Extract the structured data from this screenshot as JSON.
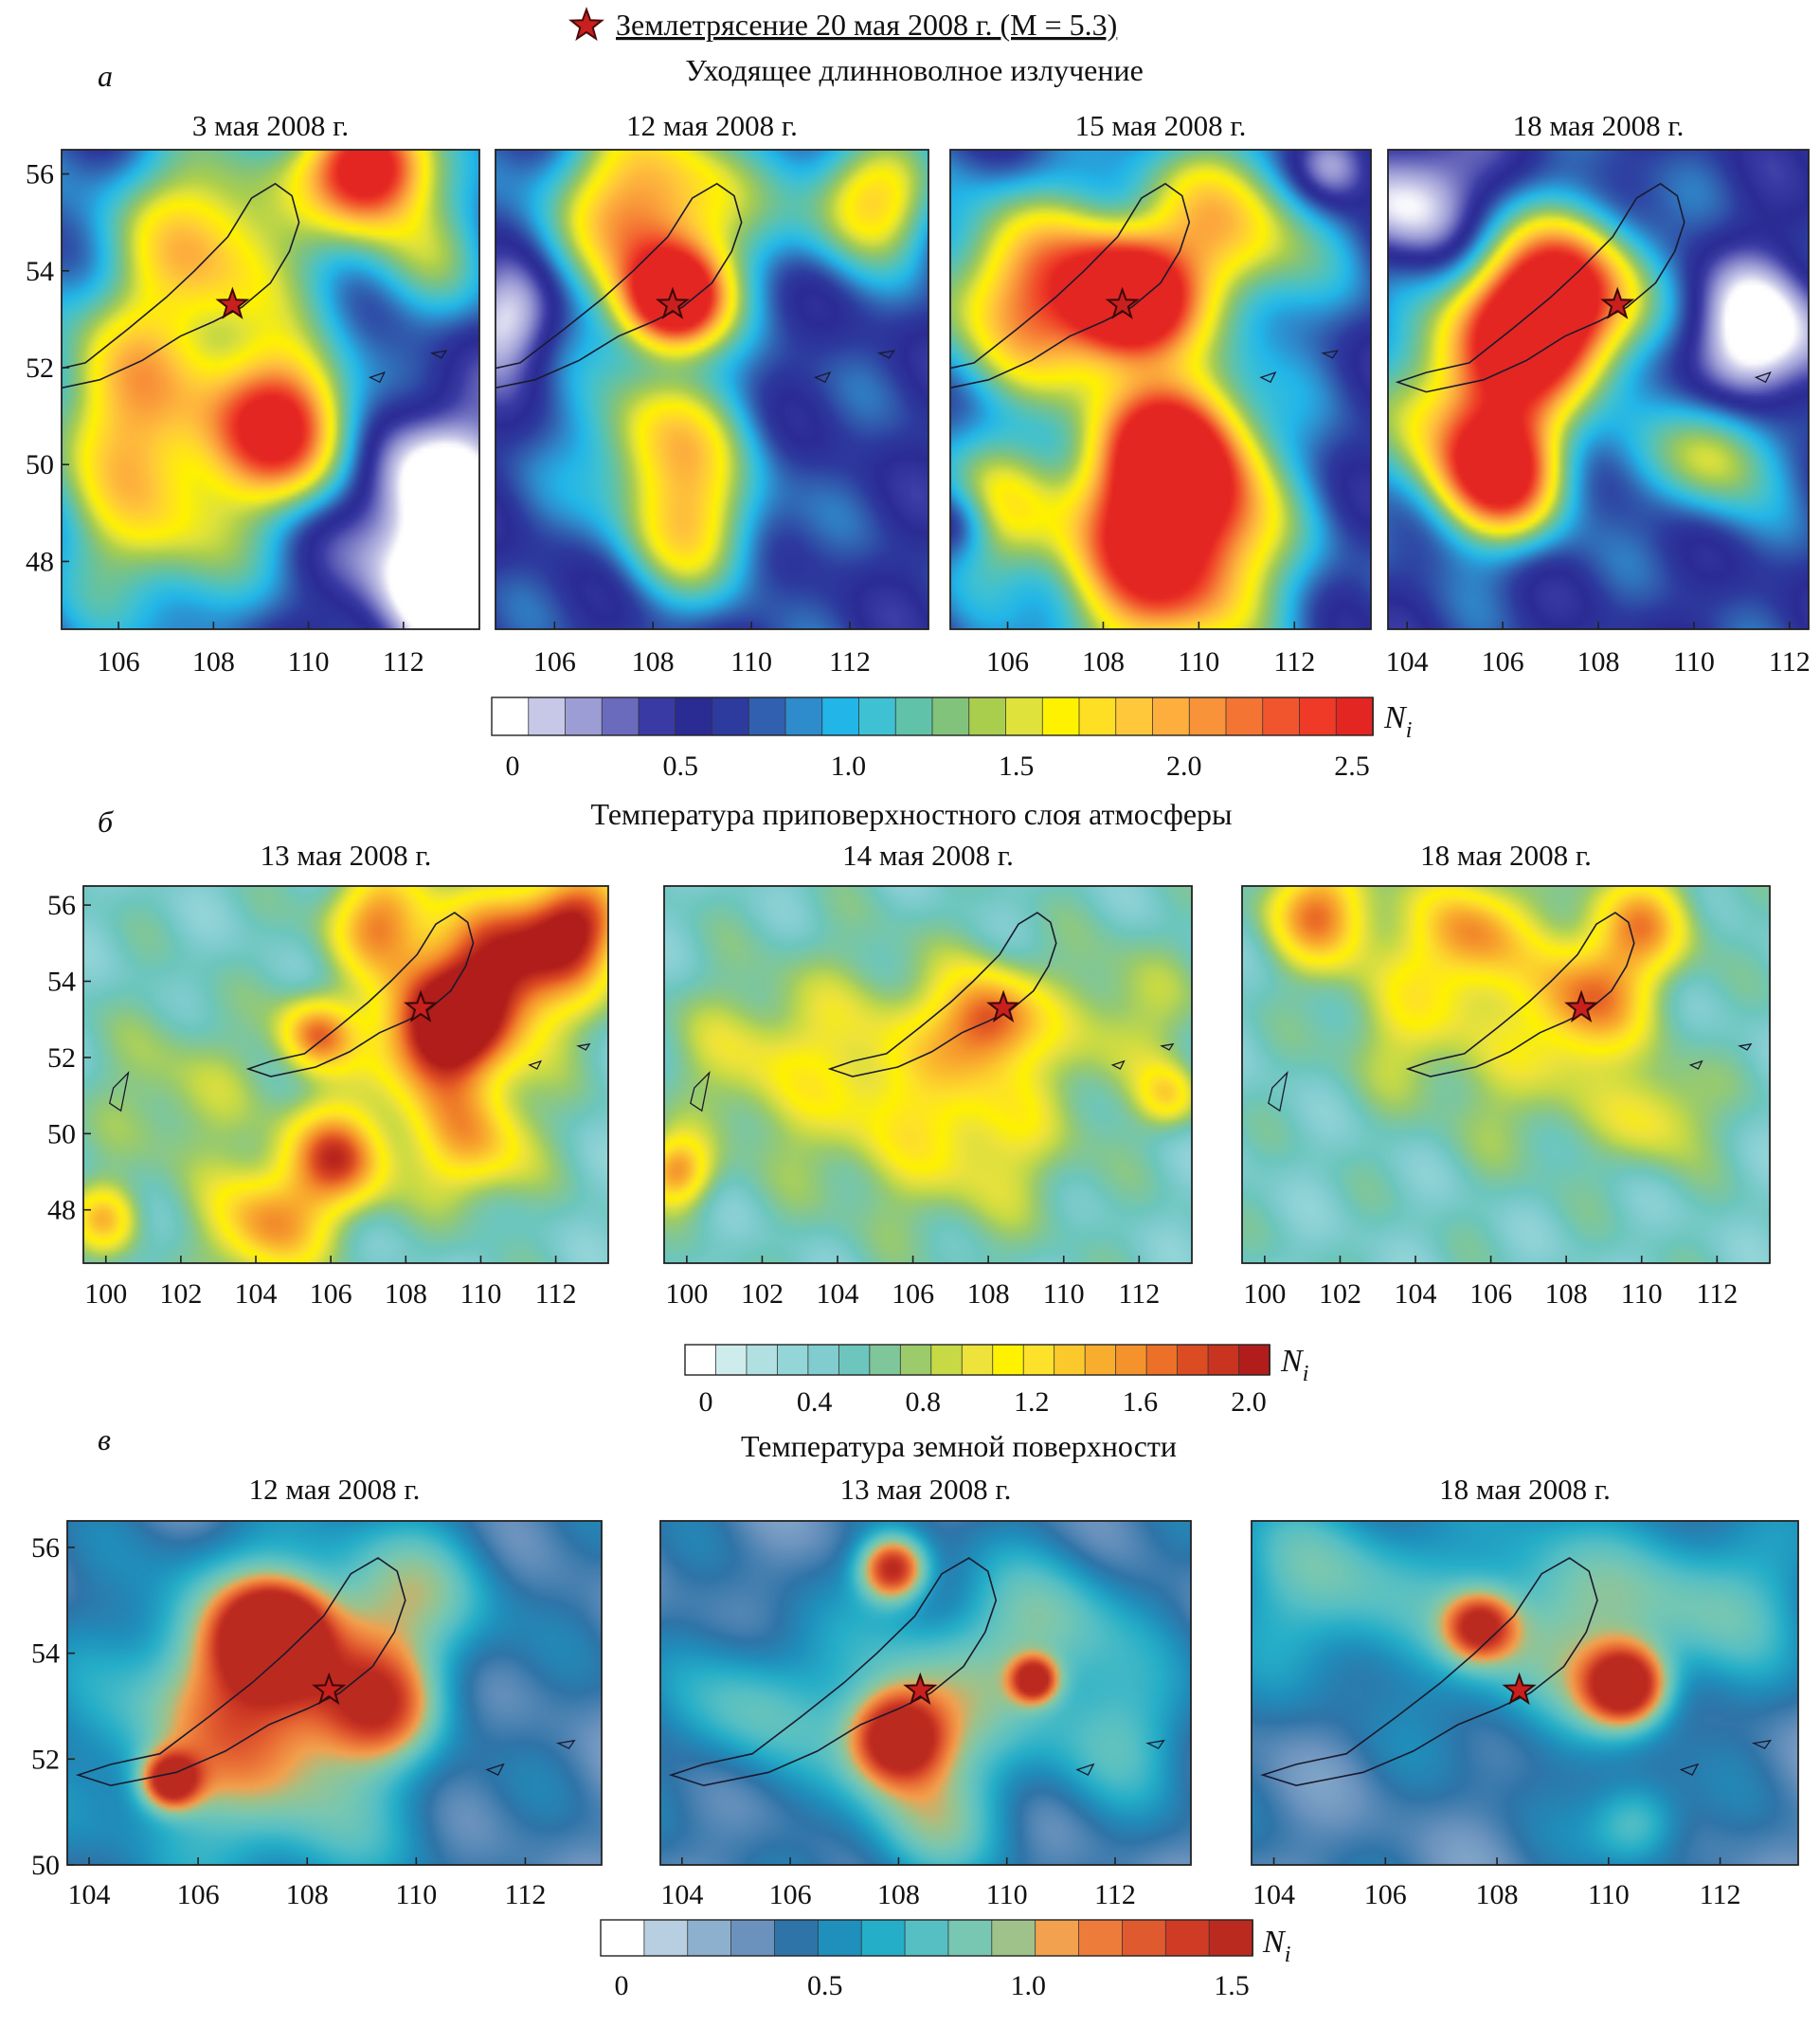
{
  "legend": {
    "marker": "red-star",
    "label": "Землетрясение 20 мая 2008 г. (M = 5.3)",
    "epicenter": {
      "lon": 108.4,
      "lat": 53.3
    },
    "star_color": "#c8201e"
  },
  "sections": [
    {
      "letter": "а",
      "title": "Уходящее длинноволное излучение",
      "panels": [
        {
          "title": "3 мая 2008 г.",
          "lon_range": [
            104.8,
            113.6
          ],
          "lat_range": [
            46.6,
            56.5
          ],
          "x_ticks": [
            106,
            108,
            110,
            112
          ],
          "y_ticks": [
            48,
            50,
            52,
            54,
            56
          ],
          "hotspots": [
            {
              "lon": 111.3,
              "lat": 56.2,
              "amp": 2.2,
              "r": 1.2
            },
            {
              "lon": 109.5,
              "lat": 50.8,
              "amp": 1.9,
              "r": 1.5
            },
            {
              "lon": 108.0,
              "lat": 54.6,
              "amp": 1.2,
              "r": 2.2
            },
            {
              "lon": 106.2,
              "lat": 51.5,
              "amp": 1.0,
              "r": 2.0
            },
            {
              "lon": 106.8,
              "lat": 48.8,
              "amp": 0.9,
              "r": 2.2
            },
            {
              "lon": 112.5,
              "lat": 54.5,
              "amp": 0.6,
              "r": 1.5
            },
            {
              "lon": 112.6,
              "lat": 49.5,
              "amp": -0.8,
              "r": 1.8
            },
            {
              "lon": 112.8,
              "lat": 47.3,
              "amp": -0.7,
              "r": 1.6
            }
          ]
        },
        {
          "title": "12 мая 2008 г.",
          "lon_range": [
            104.8,
            113.6
          ],
          "lat_range": [
            46.6,
            56.5
          ],
          "x_ticks": [
            106,
            108,
            110,
            112
          ],
          "y_ticks": [],
          "hotspots": [
            {
              "lon": 108.4,
              "lat": 53.4,
              "amp": 2.2,
              "r": 1.0
            },
            {
              "lon": 108.0,
              "lat": 55.3,
              "amp": 1.5,
              "r": 2.0
            },
            {
              "lon": 108.2,
              "lat": 50.5,
              "amp": 1.1,
              "r": 1.6
            },
            {
              "lon": 108.8,
              "lat": 48.6,
              "amp": 0.9,
              "r": 1.4
            },
            {
              "lon": 112.4,
              "lat": 55.5,
              "amp": 1.2,
              "r": 1.3
            },
            {
              "lon": 105.0,
              "lat": 53.0,
              "amp": -0.6,
              "r": 1.1
            }
          ]
        },
        {
          "title": "15 мая 2008 г.",
          "lon_range": [
            104.8,
            113.6
          ],
          "lat_range": [
            46.6,
            56.5
          ],
          "x_ticks": [
            106,
            108,
            110,
            112
          ],
          "y_ticks": [],
          "hotspots": [
            {
              "lon": 108.5,
              "lat": 53.4,
              "amp": 2.2,
              "r": 1.2
            },
            {
              "lon": 109.3,
              "lat": 48.2,
              "amp": 2.1,
              "r": 2.2
            },
            {
              "lon": 109.5,
              "lat": 50.3,
              "amp": 1.9,
              "r": 1.6
            },
            {
              "lon": 106.5,
              "lat": 53.5,
              "amp": 1.5,
              "r": 2.0
            },
            {
              "lon": 110.5,
              "lat": 54.8,
              "amp": 1.2,
              "r": 2.0
            },
            {
              "lon": 105.5,
              "lat": 49.0,
              "amp": 0.9,
              "r": 1.4
            },
            {
              "lon": 112.8,
              "lat": 56.2,
              "amp": -0.7,
              "r": 0.9
            },
            {
              "lon": 105.0,
              "lat": 48.8,
              "amp": -0.6,
              "r": 0.8
            }
          ]
        },
        {
          "title": "18 мая 2008 г.",
          "lon_range": [
            103.6,
            112.4
          ],
          "lat_range": [
            46.6,
            56.5
          ],
          "x_ticks": [
            104,
            106,
            108,
            110,
            112
          ],
          "y_ticks": [],
          "hotspots": [
            {
              "lon": 106.5,
              "lat": 52.8,
              "amp": 1.9,
              "r": 1.6
            },
            {
              "lon": 106.0,
              "lat": 49.8,
              "amp": 1.8,
              "r": 1.3
            },
            {
              "lon": 107.5,
              "lat": 53.6,
              "amp": 1.4,
              "r": 1.6
            },
            {
              "lon": 110.5,
              "lat": 50.3,
              "amp": 1.0,
              "r": 1.3
            },
            {
              "lon": 105.0,
              "lat": 51.0,
              "amp": 1.0,
              "r": 1.8
            },
            {
              "lon": 104.2,
              "lat": 55.5,
              "amp": -0.7,
              "r": 1.3
            },
            {
              "lon": 111.3,
              "lat": 52.5,
              "amp": -0.8,
              "r": 1.6
            }
          ]
        }
      ],
      "colorbar": {
        "label": "N",
        "label_sub": "i",
        "tick_labels": [
          "0",
          "0.5",
          "1.0",
          "1.5",
          "2.0",
          "2.5"
        ],
        "colors": [
          "#ffffff",
          "#c7c7e8",
          "#9d9dd6",
          "#6b6bbe",
          "#3a3aa4",
          "#2b2b94",
          "#2d3a9e",
          "#3160b0",
          "#2e8ccd",
          "#22b6e8",
          "#3ec1d3",
          "#5fc2a9",
          "#82c37c",
          "#a9ce4e",
          "#dfe23a",
          "#fff200",
          "#ffdf23",
          "#ffc83a",
          "#fdae3d",
          "#f89339",
          "#f47434",
          "#f1552d",
          "#ee3a26",
          "#e32622"
        ]
      }
    },
    {
      "letter": "б",
      "title": "Температура приповерхностного слоя атмосферы",
      "panels": [
        {
          "title": "13 мая 2008 г.",
          "lon_range": [
            99.4,
            113.4
          ],
          "lat_range": [
            46.6,
            56.5
          ],
          "x_ticks": [
            100,
            102,
            104,
            106,
            108,
            110,
            112
          ],
          "y_ticks": [
            48,
            50,
            52,
            54,
            56
          ],
          "hotspots": [
            {
              "lon": 108.8,
              "lat": 52.6,
              "amp": 1.55,
              "r": 1.6
            },
            {
              "lon": 110.5,
              "lat": 54.2,
              "amp": 1.45,
              "r": 2.0
            },
            {
              "lon": 106.2,
              "lat": 49.4,
              "amp": 1.25,
              "r": 1.4
            },
            {
              "lon": 112.5,
              "lat": 55.5,
              "amp": 1.3,
              "r": 1.4
            },
            {
              "lon": 105.6,
              "lat": 52.6,
              "amp": 1.1,
              "r": 1.0
            },
            {
              "lon": 107.3,
              "lat": 55.6,
              "amp": 1.0,
              "r": 1.4
            },
            {
              "lon": 104.3,
              "lat": 47.6,
              "amp": 1.0,
              "r": 1.5
            },
            {
              "lon": 109.8,
              "lat": 49.8,
              "amp": 0.9,
              "r": 1.6
            },
            {
              "lon": 102.0,
              "lat": 51.0,
              "amp": 0.35,
              "r": 2.2
            },
            {
              "lon": 100.0,
              "lat": 47.8,
              "amp": 0.8,
              "r": 0.9
            }
          ]
        },
        {
          "title": "14 мая 2008 г.",
          "lon_range": [
            99.4,
            113.4
          ],
          "lat_range": [
            46.6,
            56.5
          ],
          "x_ticks": [
            100,
            102,
            104,
            106,
            108,
            110,
            112
          ],
          "y_ticks": [],
          "hotspots": [
            {
              "lon": 108.0,
              "lat": 53.0,
              "amp": 1.1,
              "r": 1.3
            },
            {
              "lon": 99.7,
              "lat": 49.0,
              "amp": 1.0,
              "r": 0.9
            },
            {
              "lon": 105.0,
              "lat": 51.5,
              "amp": 0.55,
              "r": 3.0
            },
            {
              "lon": 108.0,
              "lat": 50.0,
              "amp": 0.45,
              "r": 2.5
            },
            {
              "lon": 111.5,
              "lat": 53.0,
              "amp": 0.4,
              "r": 2.0
            },
            {
              "lon": 101.5,
              "lat": 52.0,
              "amp": 0.35,
              "r": 2.0
            },
            {
              "lon": 112.8,
              "lat": 51.0,
              "amp": 0.6,
              "r": 0.8
            }
          ]
        },
        {
          "title": "18 мая 2008 г.",
          "lon_range": [
            99.4,
            113.4
          ],
          "lat_range": [
            46.6,
            56.5
          ],
          "x_ticks": [
            100,
            102,
            104,
            106,
            108,
            110,
            112
          ],
          "y_ticks": [],
          "hotspots": [
            {
              "lon": 101.5,
              "lat": 55.8,
              "amp": 1.1,
              "r": 1.4
            },
            {
              "lon": 108.5,
              "lat": 53.5,
              "amp": 1.1,
              "r": 1.6
            },
            {
              "lon": 105.5,
              "lat": 55.3,
              "amp": 1.0,
              "r": 1.5
            },
            {
              "lon": 110.0,
              "lat": 55.5,
              "amp": 0.9,
              "r": 1.4
            },
            {
              "lon": 104.0,
              "lat": 53.0,
              "amp": 0.5,
              "r": 2.0
            },
            {
              "lon": 110.5,
              "lat": 50.5,
              "amp": 0.55,
              "r": 1.4
            },
            {
              "lon": 107.0,
              "lat": 51.0,
              "amp": 0.3,
              "r": 2.0
            }
          ]
        }
      ],
      "colorbar": {
        "label": "N",
        "label_sub": "i",
        "tick_labels": [
          "0",
          "0.4",
          "0.8",
          "1.2",
          "1.6",
          "2.0"
        ],
        "colors": [
          "#ffffff",
          "#cfeced",
          "#b0e0e2",
          "#94d5d8",
          "#80cccf",
          "#6cc6bd",
          "#7fc69a",
          "#9bcb6a",
          "#c7da45",
          "#eee33a",
          "#fff200",
          "#fde12a",
          "#fcc92d",
          "#f9ad2e",
          "#f4922c",
          "#ec7027",
          "#dc4c23",
          "#c8341f",
          "#b01d1a"
        ]
      }
    },
    {
      "letter": "в",
      "title": "Температура земной поверхности",
      "panels": [
        {
          "title": "12 мая 2008 г.",
          "lon_range": [
            103.6,
            113.4
          ],
          "lat_range": [
            50.0,
            56.5
          ],
          "x_ticks": [
            104,
            106,
            108,
            110,
            112
          ],
          "y_ticks": [
            50,
            52,
            54,
            56
          ],
          "hotspots": [
            {
              "lon": 107.4,
              "lat": 54.3,
              "amp": 1.45,
              "r": 0.8
            },
            {
              "lon": 105.5,
              "lat": 51.6,
              "amp": 1.15,
              "r": 0.5
            },
            {
              "lon": 107.5,
              "lat": 54.0,
              "amp": 0.7,
              "r": 1.8
            },
            {
              "lon": 106.5,
              "lat": 52.5,
              "amp": 0.55,
              "r": 2.4
            },
            {
              "lon": 109.3,
              "lat": 53.0,
              "amp": 0.7,
              "r": 1.0
            },
            {
              "lon": 110.0,
              "lat": 55.0,
              "amp": 0.45,
              "r": 1.5
            },
            {
              "lon": 108.5,
              "lat": 51.0,
              "amp": 0.2,
              "r": 2.0
            }
          ]
        },
        {
          "title": "13 мая 2008 г.",
          "lon_range": [
            103.6,
            113.4
          ],
          "lat_range": [
            50.0,
            56.5
          ],
          "x_ticks": [
            104,
            106,
            108,
            110,
            112
          ],
          "y_ticks": [],
          "hotspots": [
            {
              "lon": 108.0,
              "lat": 52.4,
              "amp": 1.2,
              "r": 0.8
            },
            {
              "lon": 107.9,
              "lat": 55.6,
              "amp": 1.15,
              "r": 0.6
            },
            {
              "lon": 110.5,
              "lat": 53.5,
              "amp": 1.1,
              "r": 0.4
            },
            {
              "lon": 108.5,
              "lat": 53.0,
              "amp": 0.5,
              "r": 1.8
            },
            {
              "lon": 110.8,
              "lat": 54.5,
              "amp": 0.45,
              "r": 1.4
            },
            {
              "lon": 105.2,
              "lat": 53.0,
              "amp": 0.4,
              "r": 1.3
            },
            {
              "lon": 112.0,
              "lat": 52.5,
              "amp": 0.35,
              "r": 1.4
            },
            {
              "lon": 108.5,
              "lat": 50.8,
              "amp": 0.4,
              "r": 1.3
            }
          ]
        },
        {
          "title": "18 мая 2008 г.",
          "lon_range": [
            103.6,
            113.4
          ],
          "lat_range": [
            50.0,
            56.5
          ],
          "x_ticks": [
            104,
            106,
            108,
            110,
            112
          ],
          "y_ticks": [],
          "hotspots": [
            {
              "lon": 110.3,
              "lat": 53.4,
              "amp": 1.3,
              "r": 0.7
            },
            {
              "lon": 107.7,
              "lat": 54.5,
              "amp": 0.9,
              "r": 0.6
            },
            {
              "lon": 109.0,
              "lat": 54.5,
              "amp": 0.55,
              "r": 2.0
            },
            {
              "lon": 105.0,
              "lat": 55.3,
              "amp": 0.45,
              "r": 1.7
            },
            {
              "lon": 112.0,
              "lat": 55.0,
              "amp": 0.4,
              "r": 1.5
            },
            {
              "lon": 110.5,
              "lat": 50.8,
              "amp": 0.45,
              "r": 0.8
            }
          ]
        }
      ],
      "colorbar": {
        "label": "N",
        "label_sub": "i",
        "tick_labels": [
          "0",
          "0.5",
          "1.0",
          "1.5"
        ],
        "colors": [
          "#ffffff",
          "#b7cfe0",
          "#8eb0cf",
          "#6a92bd",
          "#2f74a8",
          "#1f8fbc",
          "#25aec8",
          "#55bfc4",
          "#77c7b2",
          "#9fc28a",
          "#f2a14e",
          "#ed7c3a",
          "#e05a2f",
          "#cf3b25",
          "#bb2a1f"
        ]
      }
    }
  ],
  "chart_data": [
    {
      "type": "heatmap",
      "title": "Уходящее длинноволное излучение",
      "subplots": [
        "3 мая 2008 г.",
        "12 мая 2008 г.",
        "15 мая 2008 г.",
        "18 мая 2008 г."
      ],
      "xlabel": "",
      "ylabel": "",
      "xlim": [
        104.8,
        113.6
      ],
      "ylim": [
        46.6,
        56.5
      ],
      "colorbar_label": "Ni",
      "colorbar_range": [
        0,
        2.5
      ],
      "epicenter": {
        "lon": 108.4,
        "lat": 53.3
      }
    },
    {
      "type": "heatmap",
      "title": "Температура приповерхностного слоя атмосферы",
      "subplots": [
        "13 мая 2008 г.",
        "14 мая 2008 г.",
        "18 мая 2008 г."
      ],
      "xlabel": "",
      "ylabel": "",
      "xlim": [
        99.4,
        113.4
      ],
      "ylim": [
        46.6,
        56.5
      ],
      "colorbar_label": "Ni",
      "colorbar_range": [
        0,
        2.0
      ],
      "epicenter": {
        "lon": 108.4,
        "lat": 53.3
      }
    },
    {
      "type": "heatmap",
      "title": "Температура земной поверхности",
      "subplots": [
        "12 мая 2008 г.",
        "13 мая 2008 г.",
        "18 мая 2008 г."
      ],
      "xlabel": "",
      "ylabel": "",
      "xlim": [
        103.6,
        113.4
      ],
      "ylim": [
        50.0,
        56.5
      ],
      "colorbar_label": "Ni",
      "colorbar_range": [
        0,
        1.5
      ],
      "epicenter": {
        "lon": 108.4,
        "lat": 53.3
      }
    }
  ]
}
